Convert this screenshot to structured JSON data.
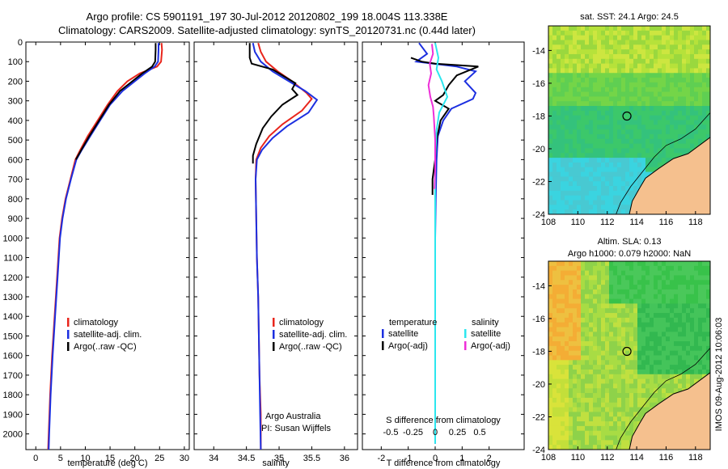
{
  "header": {
    "title_line1": "Argo profile: CS 5901191_197 30-Jul-2012 20120802_199 18.004S 113.338E",
    "title_line2": "Climatology: CARS2009. Satellite-adjusted climatology: synTS_20120731.nc (0.44d later)"
  },
  "colors": {
    "climatology": "#e8251c",
    "satellite": "#1c2fe0",
    "argo": "#000000",
    "cyan": "#2ce6ee",
    "magenta": "#ee2fd8"
  },
  "chart_data": [
    {
      "id": "temperature",
      "type": "line",
      "xlabel": "temperature (deg C)",
      "ylabel": "",
      "xlim": [
        -2,
        31
      ],
      "ylim": [
        2080,
        0
      ],
      "xticks": [
        0,
        5,
        10,
        15,
        20,
        25,
        30
      ],
      "yticks": [
        0,
        100,
        200,
        300,
        400,
        500,
        600,
        700,
        800,
        900,
        1000,
        1100,
        1200,
        1300,
        1400,
        1500,
        1600,
        1700,
        1800,
        1900,
        2000
      ],
      "legend": [
        "climatology",
        "satellite-adj. clim.",
        "Argo(..raw -QC)"
      ],
      "series": [
        {
          "name": "climatology",
          "color": "climatology",
          "points": [
            [
              25.4,
              5
            ],
            [
              25.5,
              40
            ],
            [
              25.3,
              100
            ],
            [
              24.5,
              125
            ],
            [
              21,
              160
            ],
            [
              18.5,
              200
            ],
            [
              16.5,
              250
            ],
            [
              14.5,
              320
            ],
            [
              12.5,
              400
            ],
            [
              10.5,
              480
            ],
            [
              9,
              550
            ],
            [
              8,
              600
            ],
            [
              7,
              700
            ],
            [
              6,
              800
            ],
            [
              5.3,
              900
            ],
            [
              4.8,
              1000
            ],
            [
              4.3,
              1200
            ],
            [
              3.8,
              1400
            ],
            [
              3.3,
              1600
            ],
            [
              2.9,
              1800
            ],
            [
              2.6,
              2000
            ],
            [
              2.5,
              2080
            ]
          ]
        },
        {
          "name": "satellite-adj. clim.",
          "color": "satellite",
          "points": [
            [
              24.8,
              5
            ],
            [
              24.8,
              40
            ],
            [
              24.7,
              100
            ],
            [
              24,
              125
            ],
            [
              22,
              160
            ],
            [
              20,
              200
            ],
            [
              17.5,
              250
            ],
            [
              15,
              320
            ],
            [
              13,
              400
            ],
            [
              11,
              480
            ],
            [
              9.3,
              550
            ],
            [
              8.2,
              600
            ],
            [
              7.1,
              700
            ],
            [
              6.1,
              800
            ],
            [
              5.4,
              900
            ],
            [
              4.9,
              1000
            ],
            [
              4.4,
              1200
            ],
            [
              3.9,
              1400
            ],
            [
              3.4,
              1600
            ],
            [
              3,
              1800
            ],
            [
              2.7,
              2000
            ],
            [
              2.6,
              2080
            ]
          ]
        },
        {
          "name": "Argo(..raw -QC)",
          "color": "argo",
          "points": [
            [
              24.2,
              5
            ],
            [
              24.2,
              40
            ],
            [
              24.1,
              100
            ],
            [
              23.5,
              125
            ],
            [
              21.5,
              160
            ],
            [
              19.5,
              200
            ],
            [
              17,
              250
            ],
            [
              14.8,
              320
            ],
            [
              12.8,
              400
            ],
            [
              10.8,
              480
            ],
            [
              9.2,
              550
            ],
            [
              8.1,
              600
            ]
          ]
        }
      ]
    },
    {
      "id": "salinity",
      "type": "line",
      "xlabel": "salinity",
      "xlim": [
        33.7,
        36.2
      ],
      "ylim": [
        2080,
        0
      ],
      "xticks": [
        34,
        34.5,
        35,
        35.5,
        36
      ],
      "legend": [
        "climatology",
        "satellite-adj. clim.",
        "Argo(..raw -QC)"
      ],
      "annotations": [
        "Argo Australia",
        "PI: Susan Wijffels"
      ],
      "series": [
        {
          "name": "climatology",
          "color": "climatology",
          "points": [
            [
              34.68,
              5
            ],
            [
              34.72,
              50
            ],
            [
              34.8,
              100
            ],
            [
              34.98,
              150
            ],
            [
              35.2,
              200
            ],
            [
              35.42,
              260
            ],
            [
              35.5,
              290
            ],
            [
              35.35,
              350
            ],
            [
              35.05,
              420
            ],
            [
              34.85,
              480
            ],
            [
              34.72,
              540
            ],
            [
              34.65,
              600
            ],
            [
              34.64,
              700
            ],
            [
              34.65,
              900
            ],
            [
              34.66,
              1100
            ],
            [
              34.68,
              1300
            ],
            [
              34.69,
              1500
            ],
            [
              34.7,
              1700
            ],
            [
              34.72,
              1900
            ],
            [
              34.72,
              2080
            ]
          ]
        },
        {
          "name": "satellite-adj. clim.",
          "color": "satellite",
          "points": [
            [
              34.6,
              5
            ],
            [
              34.63,
              50
            ],
            [
              34.72,
              100
            ],
            [
              34.9,
              150
            ],
            [
              35.15,
              200
            ],
            [
              35.4,
              250
            ],
            [
              35.58,
              295
            ],
            [
              35.45,
              360
            ],
            [
              35.12,
              430
            ],
            [
              34.9,
              490
            ],
            [
              34.74,
              550
            ],
            [
              34.66,
              600
            ],
            [
              34.64,
              700
            ],
            [
              34.65,
              900
            ],
            [
              34.66,
              1100
            ],
            [
              34.68,
              1300
            ],
            [
              34.69,
              1500
            ],
            [
              34.7,
              1700
            ],
            [
              34.71,
              1900
            ],
            [
              34.72,
              2080
            ]
          ]
        },
        {
          "name": "Argo(..raw -QC)",
          "color": "argo",
          "points": [
            [
              34.55,
              5
            ],
            [
              34.55,
              80
            ],
            [
              34.58,
              110
            ],
            [
              34.9,
              140
            ],
            [
              35.1,
              180
            ],
            [
              35.25,
              210
            ],
            [
              35.2,
              240
            ],
            [
              35.28,
              270
            ],
            [
              35.05,
              320
            ],
            [
              34.88,
              380
            ],
            [
              34.75,
              440
            ],
            [
              34.65,
              520
            ],
            [
              34.6,
              580
            ],
            [
              34.6,
              620
            ]
          ]
        }
      ]
    },
    {
      "id": "differences",
      "type": "line",
      "xlabel": "T difference from climatology",
      "secondary_xlabel": "S difference from climatology",
      "xlim": [
        -2.7,
        3.3
      ],
      "ylim": [
        2080,
        0
      ],
      "xticks": [
        -2,
        -1,
        0,
        1,
        2
      ],
      "secondary_xticks": [
        -0.5,
        -0.25,
        0,
        0.25,
        0.5
      ],
      "legend_headers": [
        "temperature",
        "salinity"
      ],
      "legend": [
        "satellite",
        "Argo(-adj)",
        "satellite",
        "Argo(-adj)"
      ],
      "series": [
        {
          "name": "temperature satellite",
          "color": "satellite",
          "points": [
            [
              -0.6,
              5
            ],
            [
              -0.3,
              60
            ],
            [
              -0.7,
              100
            ],
            [
              0.8,
              125
            ],
            [
              1.5,
              150
            ],
            [
              1.1,
              200
            ],
            [
              1.5,
              260
            ],
            [
              1.4,
              290
            ],
            [
              0.6,
              340
            ],
            [
              0.3,
              400
            ],
            [
              0.1,
              480
            ],
            [
              0.05,
              600
            ],
            [
              0.02,
              800
            ],
            [
              0,
              1000
            ],
            [
              0,
              1500
            ],
            [
              0,
              2050
            ]
          ]
        },
        {
          "name": "temperature Argo(-adj)",
          "color": "argo",
          "points": [
            [
              -0.9,
              80
            ],
            [
              -0.5,
              100
            ],
            [
              0,
              110
            ],
            [
              1.6,
              125
            ],
            [
              0.8,
              170
            ],
            [
              0.5,
              220
            ],
            [
              0.3,
              270
            ],
            [
              0,
              300
            ],
            [
              0.5,
              340
            ],
            [
              0.2,
              400
            ],
            [
              0.05,
              500
            ],
            [
              0,
              600
            ],
            [
              -0.1,
              700
            ],
            [
              -0.1,
              780
            ]
          ]
        },
        {
          "name": "salinity satellite",
          "color": "cyan",
          "points": [
            [
              0,
              5
            ],
            [
              0.12,
              80
            ],
            [
              0.05,
              140
            ],
            [
              0.25,
              200
            ],
            [
              0.45,
              280
            ],
            [
              0.15,
              360
            ],
            [
              0.05,
              450
            ],
            [
              0,
              600
            ],
            [
              0,
              1000
            ],
            [
              0,
              1500
            ],
            [
              0,
              2050
            ]
          ]
        },
        {
          "name": "salinity Argo(-adj)",
          "color": "magenta",
          "points": [
            [
              -0.12,
              10
            ],
            [
              -0.08,
              60
            ],
            [
              -0.2,
              110
            ],
            [
              -0.15,
              160
            ],
            [
              -0.25,
              220
            ],
            [
              -0.18,
              280
            ],
            [
              -0.08,
              330
            ],
            [
              -0.05,
              380
            ],
            [
              0,
              500
            ],
            [
              0,
              650
            ],
            [
              -0.02,
              750
            ]
          ]
        }
      ]
    },
    {
      "id": "sst-map",
      "type": "heatmap",
      "title": "sat. SST: 24.1 Argo: 24.5",
      "xlim": [
        108,
        119
      ],
      "ylim": [
        -24,
        -12.5
      ],
      "xticks": [
        108,
        110,
        112,
        114,
        116,
        118
      ],
      "yticks": [
        -14,
        -16,
        -18,
        -20,
        -22,
        -24
      ],
      "marker": {
        "lon": 113.338,
        "lat": -18.004
      }
    },
    {
      "id": "sla-map",
      "type": "heatmap",
      "title": "Altim. SLA: 0.13",
      "subtitle": "Argo h1000: 0.079 h2000: NaN",
      "xlim": [
        108,
        119
      ],
      "ylim": [
        -24,
        -12.5
      ],
      "xticks": [
        108,
        110,
        112,
        114,
        116,
        118
      ],
      "yticks": [
        -14,
        -16,
        -18,
        -20,
        -22,
        -24
      ],
      "marker": {
        "lon": 113.338,
        "lat": -18.004
      }
    }
  ],
  "stamp": "IMOS 09-Aug-2012 10:06:03"
}
